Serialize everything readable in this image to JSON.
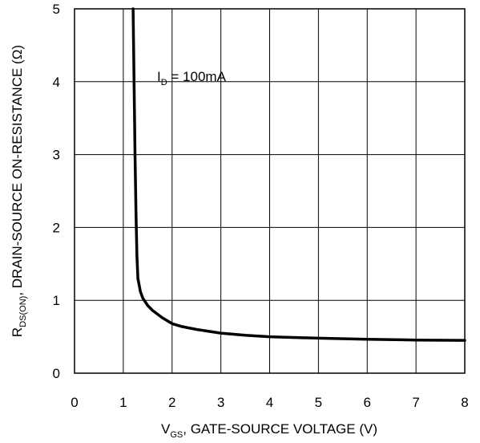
{
  "chart_data": {
    "type": "line",
    "title": "",
    "xlabel": {
      "main": "V",
      "sub": "GS",
      "rest": ", GATE-SOURCE VOLTAGE (V)"
    },
    "ylabel": {
      "main": "R",
      "sub": "DS(ON)",
      "rest": ", DRAIN-SOURCE ON-RESISTANCE (Ω)"
    },
    "xlim": [
      0,
      8
    ],
    "ylim": [
      0,
      5
    ],
    "xticks": [
      "0",
      "1",
      "2",
      "3",
      "4",
      "5",
      "6",
      "7",
      "8"
    ],
    "yticks": [
      "0",
      "1",
      "2",
      "3",
      "4",
      "5"
    ],
    "grid": true,
    "annotation": {
      "main": "I",
      "sub": "D",
      "rest": " = 100mA"
    },
    "series": [
      {
        "x": [
          1.2,
          1.22,
          1.24,
          1.26,
          1.28,
          1.3,
          1.35,
          1.4,
          1.5,
          1.6,
          1.8,
          2.0,
          2.2,
          2.5,
          3.0,
          3.5,
          4.0,
          5.0,
          6.0,
          7.0,
          8.0
        ],
        "y": [
          5.0,
          4.0,
          3.0,
          2.2,
          1.6,
          1.3,
          1.12,
          1.03,
          0.93,
          0.86,
          0.76,
          0.68,
          0.64,
          0.6,
          0.55,
          0.52,
          0.5,
          0.48,
          0.465,
          0.455,
          0.45
        ]
      }
    ]
  }
}
